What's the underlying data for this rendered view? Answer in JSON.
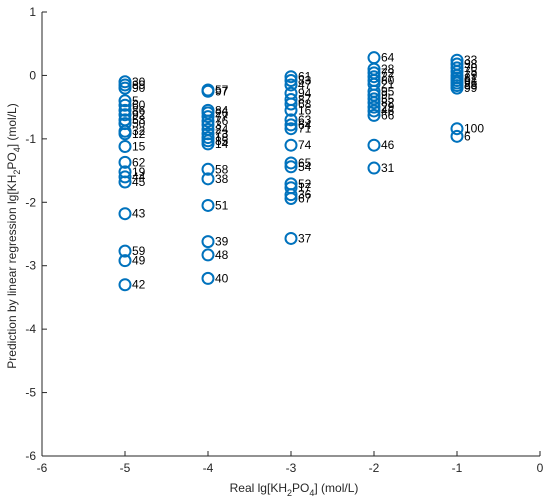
{
  "chart_data": {
    "type": "scatter",
    "title": "",
    "xlabel": {
      "text": "Real lg[KH",
      "sub1": "2",
      "mid": "PO",
      "sub2": "4",
      "tail": "] (mol/L)"
    },
    "ylabel": {
      "text": "Prediction by linear regression lg[KH",
      "sub1": "2",
      "mid": "PO",
      "sub2": "4",
      "tail": "] (mol/L)"
    },
    "xlim": [
      -6,
      0
    ],
    "ylim": [
      -6,
      1
    ],
    "xticks": [
      -6,
      -5,
      -4,
      -3,
      -2,
      -1,
      0
    ],
    "yticks": [
      -6,
      -5,
      -4,
      -3,
      -2,
      -1,
      0,
      1
    ],
    "xtick_labels": [
      "-6",
      "-5",
      "-4",
      "-3",
      "-2",
      "-1",
      "0"
    ],
    "ytick_labels": [
      "-6",
      "-5",
      "-4",
      "-3",
      "-2",
      "-1",
      "0",
      "1"
    ],
    "grid": false,
    "marker": "circle-open",
    "colors": {
      "marker": "#0072bd",
      "axis": "#262626",
      "text": "#000000"
    },
    "points": [
      {
        "x": -5,
        "y": -0.1,
        "label": "30"
      },
      {
        "x": -5,
        "y": -0.15,
        "label": "89"
      },
      {
        "x": -5,
        "y": -0.2,
        "label": "90"
      },
      {
        "x": -5,
        "y": -0.4,
        "label": "5"
      },
      {
        "x": -5,
        "y": -0.47,
        "label": "60"
      },
      {
        "x": -5,
        "y": -0.55,
        "label": "86"
      },
      {
        "x": -5,
        "y": -0.62,
        "label": "92"
      },
      {
        "x": -5,
        "y": -0.7,
        "label": "53"
      },
      {
        "x": -5,
        "y": -0.76,
        "label": "50"
      },
      {
        "x": -5,
        "y": -0.88,
        "label": "32"
      },
      {
        "x": -5,
        "y": -0.92,
        "label": "12"
      },
      {
        "x": -5,
        "y": -1.12,
        "label": "15"
      },
      {
        "x": -5,
        "y": -1.37,
        "label": "62"
      },
      {
        "x": -5,
        "y": -1.52,
        "label": "19"
      },
      {
        "x": -5,
        "y": -1.6,
        "label": "44"
      },
      {
        "x": -5,
        "y": -1.68,
        "label": "45"
      },
      {
        "x": -5,
        "y": -2.18,
        "label": "43"
      },
      {
        "x": -5,
        "y": -2.77,
        "label": "59"
      },
      {
        "x": -5,
        "y": -2.92,
        "label": "49"
      },
      {
        "x": -5,
        "y": -3.3,
        "label": "42"
      },
      {
        "x": -4,
        "y": -0.23,
        "label": "57"
      },
      {
        "x": -4,
        "y": -0.25,
        "label": "97"
      },
      {
        "x": -4,
        "y": -0.55,
        "label": "84"
      },
      {
        "x": -4,
        "y": -0.59,
        "label": "26"
      },
      {
        "x": -4,
        "y": -0.65,
        "label": "77"
      },
      {
        "x": -4,
        "y": -0.72,
        "label": "76"
      },
      {
        "x": -4,
        "y": -0.78,
        "label": "3"
      },
      {
        "x": -4,
        "y": -0.85,
        "label": "24"
      },
      {
        "x": -4,
        "y": -0.92,
        "label": "73"
      },
      {
        "x": -4,
        "y": -0.98,
        "label": "18"
      },
      {
        "x": -4,
        "y": -1.03,
        "label": "85"
      },
      {
        "x": -4,
        "y": -1.08,
        "label": "14"
      },
      {
        "x": -4,
        "y": -1.48,
        "label": "58"
      },
      {
        "x": -4,
        "y": -1.63,
        "label": "38"
      },
      {
        "x": -4,
        "y": -2.05,
        "label": "51"
      },
      {
        "x": -4,
        "y": -2.62,
        "label": "39"
      },
      {
        "x": -4,
        "y": -2.83,
        "label": "48"
      },
      {
        "x": -4,
        "y": -3.2,
        "label": "40"
      },
      {
        "x": -3,
        "y": -0.02,
        "label": "61"
      },
      {
        "x": -3,
        "y": -0.08,
        "label": "83"
      },
      {
        "x": -3,
        "y": -0.15,
        "label": "47"
      },
      {
        "x": -3,
        "y": -0.28,
        "label": "94"
      },
      {
        "x": -3,
        "y": -0.38,
        "label": "87"
      },
      {
        "x": -3,
        "y": -0.45,
        "label": "68"
      },
      {
        "x": -3,
        "y": -0.55,
        "label": "16"
      },
      {
        "x": -3,
        "y": -0.7,
        "label": "63"
      },
      {
        "x": -3,
        "y": -0.78,
        "label": "64"
      },
      {
        "x": -3,
        "y": -0.84,
        "label": "71"
      },
      {
        "x": -3,
        "y": -1.1,
        "label": "74"
      },
      {
        "x": -3,
        "y": -1.38,
        "label": "65"
      },
      {
        "x": -3,
        "y": -1.44,
        "label": "54"
      },
      {
        "x": -3,
        "y": -1.71,
        "label": "52"
      },
      {
        "x": -3,
        "y": -1.77,
        "label": "17"
      },
      {
        "x": -3,
        "y": -1.88,
        "label": "36"
      },
      {
        "x": -3,
        "y": -1.94,
        "label": "67"
      },
      {
        "x": -3,
        "y": -2.57,
        "label": "37"
      },
      {
        "x": -2,
        "y": 0.28,
        "label": "64"
      },
      {
        "x": -2,
        "y": 0.1,
        "label": "28"
      },
      {
        "x": -2,
        "y": 0.04,
        "label": "72"
      },
      {
        "x": -2,
        "y": -0.02,
        "label": "27"
      },
      {
        "x": -2,
        "y": -0.08,
        "label": "80"
      },
      {
        "x": -2,
        "y": -0.14,
        "label": "21"
      },
      {
        "x": -2,
        "y": -0.25,
        "label": "95"
      },
      {
        "x": -2,
        "y": -0.31,
        "label": "9"
      },
      {
        "x": -2,
        "y": -0.37,
        "label": "55"
      },
      {
        "x": -2,
        "y": -0.43,
        "label": "82"
      },
      {
        "x": -2,
        "y": -0.5,
        "label": "29"
      },
      {
        "x": -2,
        "y": -0.56,
        "label": "46"
      },
      {
        "x": -2,
        "y": -0.63,
        "label": "66"
      },
      {
        "x": -2,
        "y": -1.1,
        "label": "46"
      },
      {
        "x": -2,
        "y": -1.46,
        "label": "31"
      },
      {
        "x": -1,
        "y": 0.24,
        "label": "33"
      },
      {
        "x": -1,
        "y": 0.18,
        "label": "98"
      },
      {
        "x": -1,
        "y": 0.12,
        "label": "70"
      },
      {
        "x": -1,
        "y": 0.06,
        "label": "75"
      },
      {
        "x": -1,
        "y": 0.0,
        "label": "79"
      },
      {
        "x": -1,
        "y": -0.04,
        "label": "81"
      },
      {
        "x": -1,
        "y": -0.08,
        "label": "91"
      },
      {
        "x": -1,
        "y": -0.12,
        "label": "96"
      },
      {
        "x": -1,
        "y": -0.16,
        "label": "88"
      },
      {
        "x": -1,
        "y": -0.2,
        "label": "99"
      },
      {
        "x": -1,
        "y": -0.84,
        "label": "100"
      },
      {
        "x": -1,
        "y": -0.96,
        "label": "6"
      }
    ]
  }
}
